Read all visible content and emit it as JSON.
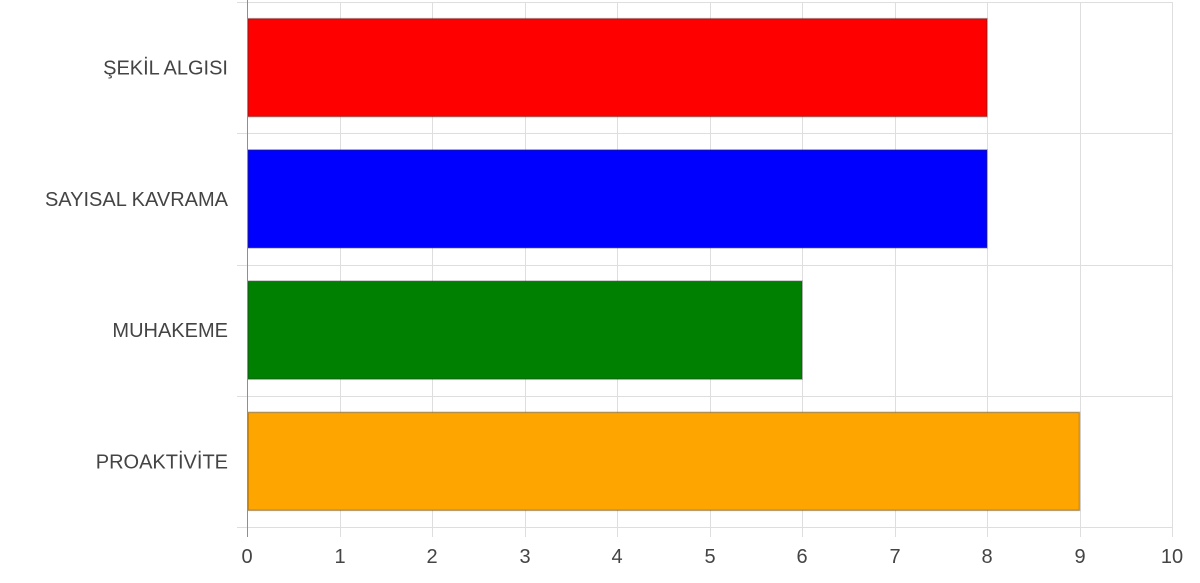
{
  "chart_data": {
    "type": "bar",
    "orientation": "horizontal",
    "categories": [
      "ŞEKİL ALGISI",
      "SAYISAL KAVRAMA",
      "MUHAKEME",
      "PROAKTİVİTE"
    ],
    "values": [
      8,
      8,
      6,
      9
    ],
    "colors": [
      "#ff0000",
      "#0000ff",
      "#008000",
      "#ffa500"
    ],
    "x_ticks": [
      "0",
      "1",
      "2",
      "3",
      "4",
      "5",
      "6",
      "7",
      "8",
      "9",
      "10"
    ],
    "xlim": [
      0,
      10
    ],
    "grid": true,
    "legend": "none"
  }
}
